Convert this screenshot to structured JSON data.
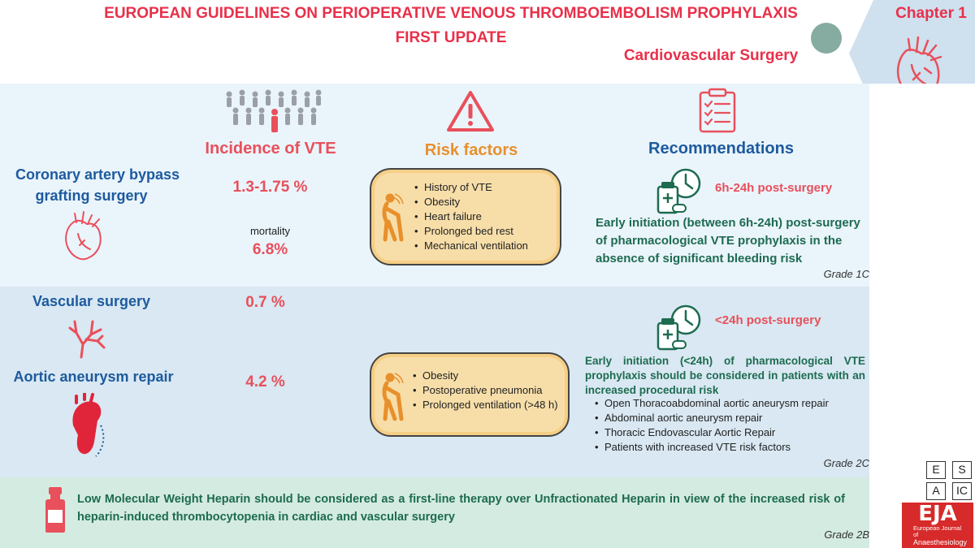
{
  "header": {
    "title_line1": "EUROPEAN GUIDELINES ON PERIOPERATIVE VENOUS THROMBOEMBOLISM PROPHYLAXIS",
    "title_line2": "FIRST UPDATE",
    "subtitle": "Cardiovascular  Surgery",
    "chapter": "Chapter 1"
  },
  "columns": {
    "incidence": "Incidence of VTE",
    "risk": "Risk factors",
    "recommendations": "Recommendations"
  },
  "cabg": {
    "name_line1": "Coronary artery bypass",
    "name_line2": "grafting surgery",
    "incidence": "1.3-1.75 %",
    "mortality_label": "mortality",
    "mortality_value": "6.8%",
    "risk_factors": [
      "History of VTE",
      "Obesity",
      "Heart failure",
      "Prolonged bed rest",
      "Mechanical ventilation"
    ],
    "rec_time": "6h-24h post-surgery",
    "rec_text": "Early initiation (between 6h-24h) post-surgery of pharmacological VTE prophylaxis in the absence of significant bleeding risk",
    "grade": "Grade 1C"
  },
  "vascular": {
    "name": "Vascular surgery",
    "incidence": "0.7 %"
  },
  "aortic": {
    "name": "Aortic aneurysm repair",
    "incidence": "4.2 %",
    "risk_factors": [
      "Obesity",
      "Postoperative pneumonia",
      "Prolonged ventilation (>48 h)"
    ],
    "rec_time": "<24h post-surgery",
    "rec_text": "Early initiation (<24h) of pharmacological VTE prophylaxis should be considered in patients with an increased procedural risk",
    "rec_items": [
      "Open Thoracoabdominal aortic aneurysm repair",
      "Abdominal aortic aneurysm repair",
      "Thoracic Endovascular Aortic Repair",
      "Patients with increased VTE risk factors"
    ],
    "grade": "Grade 2C"
  },
  "lmwh": {
    "text": "Low Molecular Weight Heparin should be considered as a first-line therapy over Unfractionated Heparin in view of the increased risk of heparin-induced thrombocytopenia in cardiac and vascular surgery",
    "grade": "Grade 2B"
  },
  "logos": {
    "esaic": [
      "E",
      "S",
      "A",
      "IC"
    ],
    "eja": "EJA",
    "eja_sub1": "European Journal",
    "eja_sub2": "of",
    "eja_sub3": "Anaesthesiology"
  },
  "colors": {
    "accent_red": "#e8304a",
    "blue": "#1d5a9e",
    "green": "#1d6b50",
    "orange": "#e8902c"
  }
}
